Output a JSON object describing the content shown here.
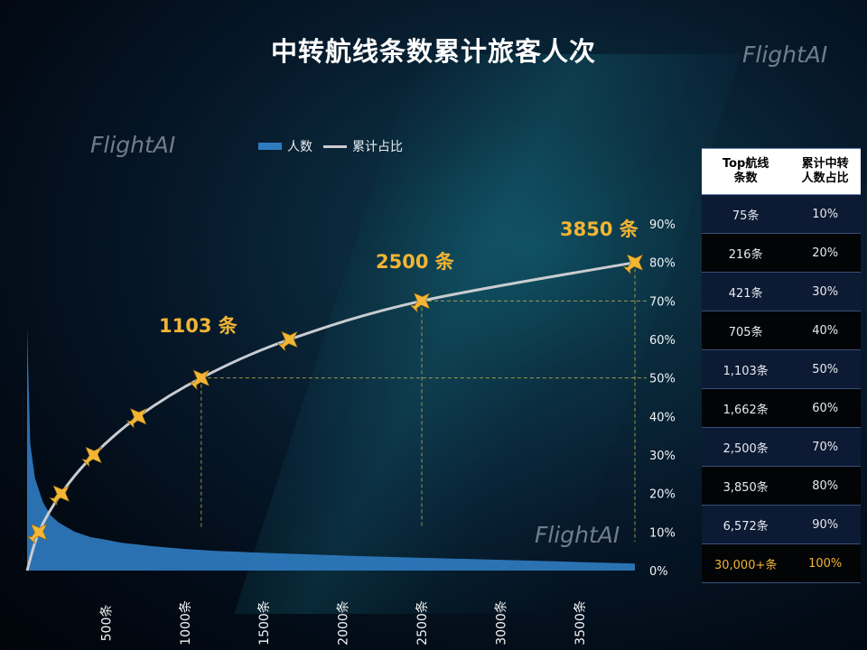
{
  "title": "中转航线条数累计旅客人次",
  "watermarks": [
    "FlightAI",
    "FlightAI",
    "FlightAI"
  ],
  "legend": {
    "bar_label": "人数",
    "line_label": "累计占比"
  },
  "colors": {
    "bar": "#2f7bbf",
    "line": "#c9ccd0",
    "accent": "#f2b534",
    "guide": "#c9b44a"
  },
  "chart_data": {
    "type": "area+line",
    "x_ticks": [
      500,
      1000,
      1500,
      2000,
      2500,
      3000,
      3500
    ],
    "x_tick_labels": [
      "500条",
      "1000条",
      "1500条",
      "2000条",
      "2500条",
      "3000条",
      "3500条"
    ],
    "xlim": [
      0,
      3850
    ],
    "y_right_ticks": [
      "0%",
      "10%",
      "20%",
      "30%",
      "40%",
      "50%",
      "60%",
      "70%",
      "80%",
      "90%"
    ],
    "ylim_right": [
      0,
      90
    ],
    "series": [
      {
        "name": "人数",
        "type": "area",
        "x": [
          0,
          20,
          50,
          100,
          150,
          200,
          300,
          400,
          500,
          600,
          800,
          1000,
          1200,
          1500,
          2000,
          2500,
          3000,
          3500,
          3850
        ],
        "values": [
          63,
          33,
          24,
          17.8,
          14.3,
          12.5,
          10.1,
          8.7,
          8.0,
          7.2,
          6.3,
          5.6,
          5.1,
          4.6,
          3.9,
          3.3,
          2.8,
          2.2,
          1.8
        ]
      },
      {
        "name": "累计占比",
        "type": "line",
        "x": [
          0,
          75,
          216,
          421,
          705,
          1103,
          1662,
          2500,
          3850
        ],
        "values": [
          0,
          10,
          20,
          30,
          40,
          50,
          60,
          70,
          80
        ]
      }
    ],
    "plane_markers": [
      75,
      216,
      421,
      705,
      1103,
      1662,
      2500,
      3850
    ],
    "callouts": [
      {
        "x": 1103,
        "label": "1103 条"
      },
      {
        "x": 2500,
        "label": "2500 条"
      },
      {
        "x": 3850,
        "label": "3850 条"
      }
    ]
  },
  "table": {
    "headers": [
      [
        "Top航线",
        "条数"
      ],
      [
        "累计中转",
        "人数占比"
      ]
    ],
    "rows": [
      {
        "count": "75条",
        "share": "10%"
      },
      {
        "count": "216条",
        "share": "20%"
      },
      {
        "count": "421条",
        "share": "30%"
      },
      {
        "count": "705条",
        "share": "40%"
      },
      {
        "count": "1,103条",
        "share": "50%"
      },
      {
        "count": "1,662条",
        "share": "60%"
      },
      {
        "count": "2,500条",
        "share": "70%"
      },
      {
        "count": "3,850条",
        "share": "80%"
      },
      {
        "count": "6,572条",
        "share": "90%"
      },
      {
        "count": "30,000+条",
        "share": "100%"
      }
    ]
  }
}
